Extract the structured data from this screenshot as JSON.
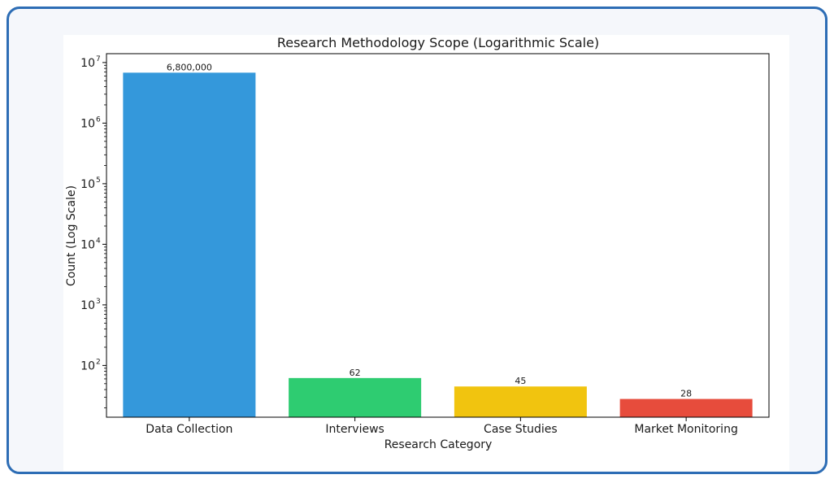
{
  "chart_data": {
    "type": "bar",
    "title": "Research Methodology Scope (Logarithmic Scale)",
    "xlabel": "Research Category",
    "ylabel": "Count (Log Scale)",
    "yscale": "log",
    "ylim": [
      14,
      14000000
    ],
    "yticks": [
      {
        "base": "10",
        "exp": "2",
        "value": 100
      },
      {
        "base": "10",
        "exp": "3",
        "value": 1000
      },
      {
        "base": "10",
        "exp": "4",
        "value": 10000
      },
      {
        "base": "10",
        "exp": "5",
        "value": 100000
      },
      {
        "base": "10",
        "exp": "6",
        "value": 1000000
      },
      {
        "base": "10",
        "exp": "7",
        "value": 10000000
      }
    ],
    "categories": [
      "Data Collection",
      "Interviews",
      "Case Studies",
      "Market Monitoring"
    ],
    "values": [
      6800000,
      62,
      45,
      28
    ],
    "data_labels": [
      "6,800,000",
      "62",
      "45",
      "28"
    ],
    "colors": [
      "#3498db",
      "#2ecc71",
      "#f1c40f",
      "#e74c3c"
    ],
    "grid": false,
    "legend": "none"
  }
}
